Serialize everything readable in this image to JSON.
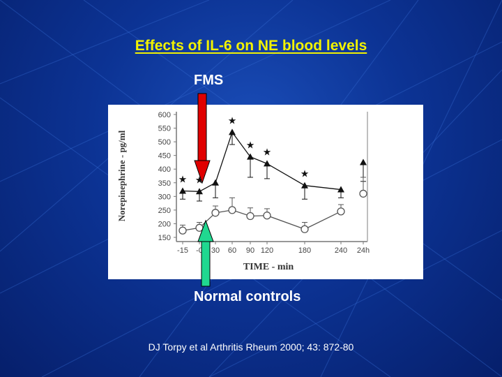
{
  "slide": {
    "title": "Effects of IL-6 on NE blood levels",
    "fms_label": "FMS",
    "normal_label": "Normal controls",
    "citation": "DJ Torpy et al Arthritis Rheum 2000; 43: 872-80"
  },
  "colors": {
    "title": "#f2f200",
    "fms_arrow": "#e00000",
    "normal_arrow": "#20d890",
    "series_fms": "#111111",
    "series_normal": "#555555"
  },
  "chart_data": {
    "type": "line",
    "xlabel": "TIME - min",
    "ylabel": "Norepinephrine - pg/ml",
    "ylim": [
      150,
      600
    ],
    "y_ticks": [
      150,
      200,
      250,
      300,
      350,
      400,
      450,
      500,
      550,
      600
    ],
    "categories": [
      "-15",
      "0",
      "30",
      "60",
      "90",
      "120",
      "180",
      "240",
      "24h"
    ],
    "x_tick_labels": [
      "-15",
      "-0",
      "30",
      "60",
      "90",
      "120",
      "180",
      "240",
      "24h"
    ],
    "series": [
      {
        "marker": "filled-triangle",
        "values": [
          320,
          318,
          350,
          535,
          445,
          420,
          340,
          325,
          425
        ],
        "error": [
          30,
          35,
          55,
          45,
          75,
          55,
          50,
          30,
          70
        ],
        "significant": [
          true,
          true,
          false,
          true,
          true,
          true,
          true,
          false,
          false
        ]
      },
      {
        "marker": "open-circle",
        "values": [
          175,
          185,
          240,
          250,
          228,
          230,
          180,
          245,
          310
        ],
        "error": [
          20,
          20,
          25,
          45,
          30,
          25,
          25,
          25,
          60
        ],
        "significant": [
          false,
          false,
          false,
          false,
          false,
          false,
          false,
          false,
          false
        ]
      }
    ],
    "significance_marker": "★",
    "grid": false
  }
}
